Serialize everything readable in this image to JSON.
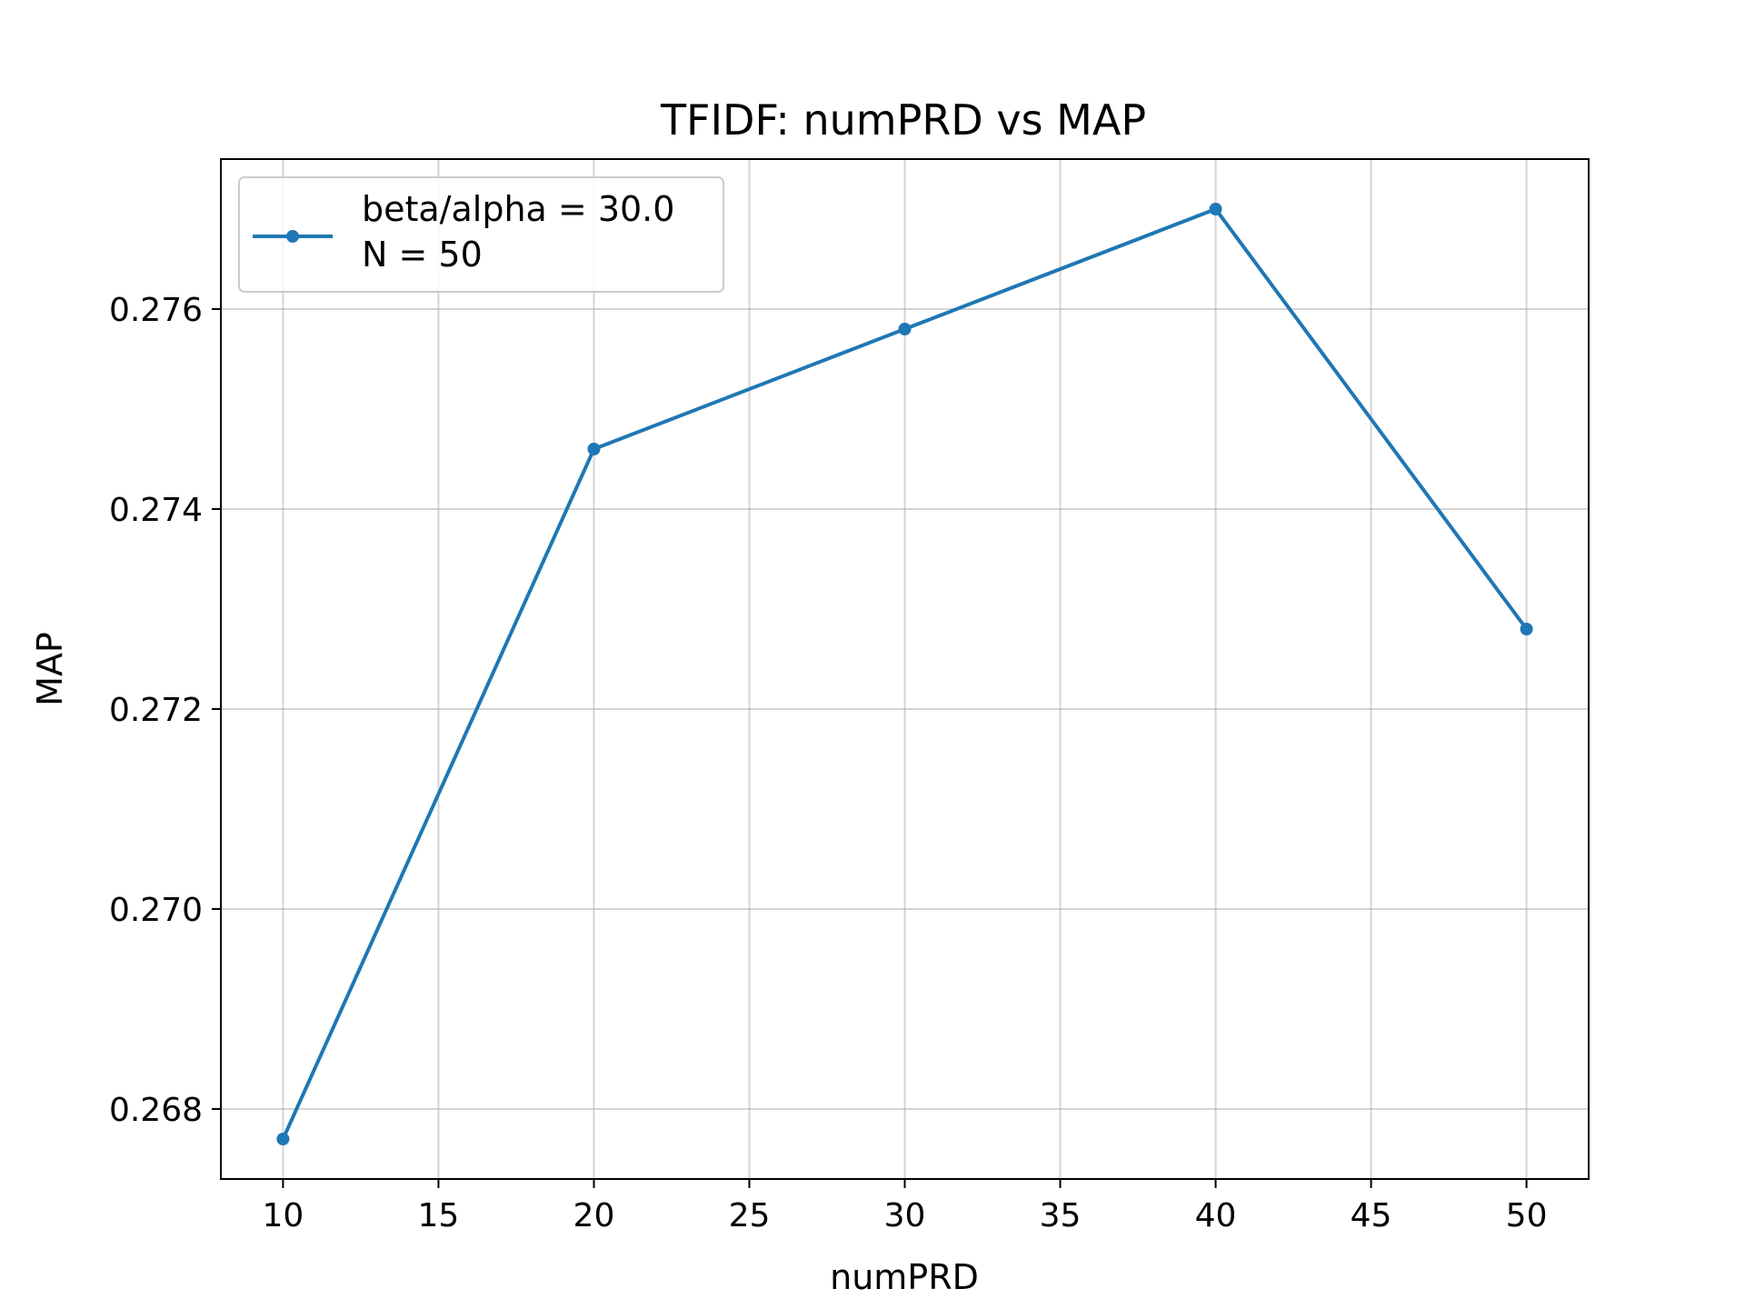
{
  "chart_data": {
    "type": "line",
    "title": "TFIDF: numPRD vs MAP",
    "xlabel": "numPRD",
    "ylabel": "MAP",
    "xlim": [
      8,
      52
    ],
    "ylim": [
      0.2673,
      0.2775
    ],
    "xticks": [
      10,
      15,
      20,
      25,
      30,
      35,
      40,
      45,
      50
    ],
    "xtick_labels": [
      "10",
      "15",
      "20",
      "25",
      "30",
      "35",
      "40",
      "45",
      "50"
    ],
    "yticks": [
      0.268,
      0.27,
      0.272,
      0.274,
      0.276
    ],
    "ytick_labels": [
      "0.268",
      "0.270",
      "0.272",
      "0.274",
      "0.276"
    ],
    "grid": true,
    "legend_position": "top-left",
    "series": [
      {
        "legend_lines": [
          "beta/alpha = 30.0",
          "N = 50"
        ],
        "color": "#1f77b4",
        "marker": "circle",
        "x": [
          10,
          20,
          30,
          40,
          50
        ],
        "y": [
          0.2677,
          0.2746,
          0.2758,
          0.277,
          0.2728
        ]
      }
    ]
  }
}
